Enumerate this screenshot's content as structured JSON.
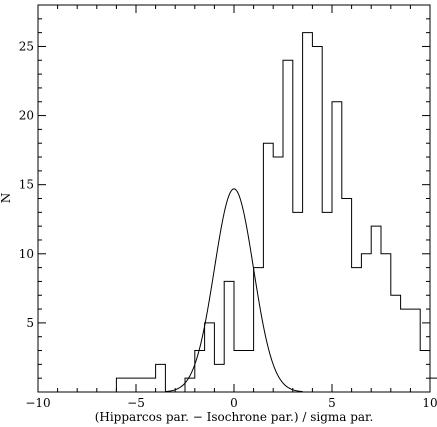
{
  "chart_data": {
    "type": "histogram",
    "title": "",
    "xlabel": "(Hipparcos par. − Isochrone par.) / sigma par.",
    "ylabel": "N",
    "xlim": [
      -10,
      10
    ],
    "ylim": [
      0,
      28
    ],
    "xticks": [
      -10,
      -5,
      0,
      5,
      10
    ],
    "yticks": [
      5,
      10,
      15,
      20,
      25
    ],
    "grid": false,
    "legend": "none",
    "line_color": "#000000",
    "bin_width": 0.5,
    "bins": [
      {
        "x0": -6.0,
        "x1": -5.5,
        "count": 1
      },
      {
        "x0": -5.5,
        "x1": -5.0,
        "count": 1
      },
      {
        "x0": -5.0,
        "x1": -4.5,
        "count": 1
      },
      {
        "x0": -4.5,
        "x1": -4.0,
        "count": 1
      },
      {
        "x0": -4.0,
        "x1": -3.5,
        "count": 2
      },
      {
        "x0": -3.5,
        "x1": -3.0,
        "count": 0
      },
      {
        "x0": -3.0,
        "x1": -2.5,
        "count": 0
      },
      {
        "x0": -2.5,
        "x1": -2.0,
        "count": 1
      },
      {
        "x0": -2.0,
        "x1": -1.5,
        "count": 3
      },
      {
        "x0": -1.5,
        "x1": -1.0,
        "count": 5
      },
      {
        "x0": -1.0,
        "x1": -0.5,
        "count": 2
      },
      {
        "x0": -0.5,
        "x1": 0.0,
        "count": 8
      },
      {
        "x0": 0.0,
        "x1": 0.5,
        "count": 3
      },
      {
        "x0": 0.5,
        "x1": 1.0,
        "count": 3
      },
      {
        "x0": 1.0,
        "x1": 1.5,
        "count": 9
      },
      {
        "x0": 1.5,
        "x1": 2.0,
        "count": 18
      },
      {
        "x0": 2.0,
        "x1": 2.5,
        "count": 17
      },
      {
        "x0": 2.5,
        "x1": 3.0,
        "count": 24
      },
      {
        "x0": 3.0,
        "x1": 3.5,
        "count": 13
      },
      {
        "x0": 3.5,
        "x1": 4.0,
        "count": 26
      },
      {
        "x0": 4.0,
        "x1": 4.5,
        "count": 25
      },
      {
        "x0": 4.5,
        "x1": 5.0,
        "count": 13
      },
      {
        "x0": 5.0,
        "x1": 5.5,
        "count": 21
      },
      {
        "x0": 5.5,
        "x1": 6.0,
        "count": 14
      },
      {
        "x0": 6.0,
        "x1": 6.5,
        "count": 9
      },
      {
        "x0": 6.5,
        "x1": 7.0,
        "count": 10
      },
      {
        "x0": 7.0,
        "x1": 7.5,
        "count": 12
      },
      {
        "x0": 7.5,
        "x1": 8.0,
        "count": 10
      },
      {
        "x0": 8.0,
        "x1": 8.5,
        "count": 7
      },
      {
        "x0": 8.5,
        "x1": 9.0,
        "count": 6
      },
      {
        "x0": 9.0,
        "x1": 9.5,
        "count": 6
      },
      {
        "x0": 9.5,
        "x1": 10.0,
        "count": 3
      },
      {
        "x0": 10.0,
        "x1": 10.5,
        "count": 1
      }
    ],
    "gaussian": {
      "mean": 0.0,
      "sigma": 1.0,
      "amplitude": 14.7,
      "x_range": [
        -3.5,
        3.5
      ]
    }
  }
}
